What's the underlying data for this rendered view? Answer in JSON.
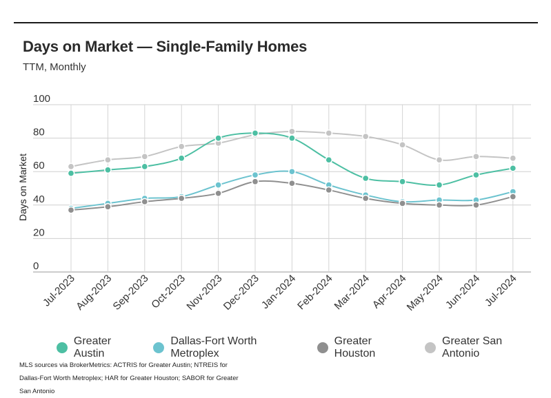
{
  "title": "Days on Market — Single-Family Homes",
  "subtitle": "TTM, Monthly",
  "footnote": "MLS sources via BrokerMetrics: ACTRIS for Greater Austin; NTREIS for Dallas-Fort Worth Metroplex; HAR for Greater Houston; SABOR for Greater San Antonio",
  "chart_data": {
    "type": "line",
    "ylabel": "Days on Market",
    "xlabel": "",
    "ylim": [
      0,
      100
    ],
    "yticks": [
      0,
      20,
      40,
      60,
      80,
      100
    ],
    "grid": true,
    "legend_position": "bottom",
    "categories": [
      "Jul-2023",
      "Aug-2023",
      "Sep-2023",
      "Oct-2023",
      "Nov-2023",
      "Dec-2023",
      "Jan-2024",
      "Feb-2024",
      "Mar-2024",
      "Apr-2024",
      "May-2024",
      "Jun-2024",
      "Jul-2024"
    ],
    "series": [
      {
        "name": "Greater Austin",
        "color": "#4dbfa3",
        "values": [
          59,
          61,
          63,
          68,
          80,
          83,
          80,
          67,
          56,
          54,
          52,
          58,
          62
        ]
      },
      {
        "name": "Dallas-Fort Worth Metroplex",
        "color": "#6cc3cf",
        "values": [
          38,
          41,
          44,
          45,
          52,
          58,
          60,
          52,
          46,
          42,
          43,
          43,
          48
        ]
      },
      {
        "name": "Greater Houston",
        "color": "#8f8f8f",
        "values": [
          37,
          39,
          42,
          44,
          47,
          54,
          53,
          49,
          44,
          41,
          40,
          40,
          45
        ]
      },
      {
        "name": "Greater San Antonio",
        "color": "#c4c4c4",
        "values": [
          63,
          67,
          69,
          75,
          77,
          82,
          84,
          83,
          81,
          76,
          67,
          69,
          68
        ]
      }
    ]
  }
}
